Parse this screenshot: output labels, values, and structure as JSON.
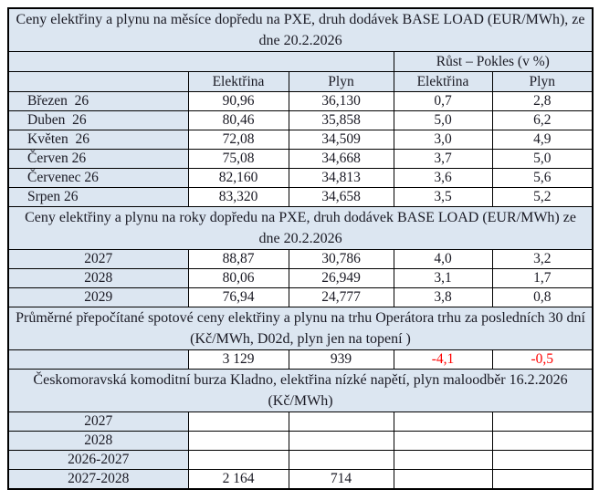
{
  "colors": {
    "header_bg": "#dce6f1",
    "cell_bg": "#ffffff",
    "text": "#1a1a24",
    "negative": "#ff0000",
    "border": "#000000"
  },
  "table": {
    "title_months": "Ceny elektřiny a plynu na měsíce dopředu na PXE, druh dodávek BASE LOAD (EUR/MWh), ze dne 20.2.2026",
    "growth_header": "Růst – Pokles (v %)",
    "col_headers": {
      "electricity": "Elektřina",
      "gas": "Plyn",
      "electricity_change": "Elektřina",
      "gas_change": "Plyn"
    },
    "months": [
      {
        "label": "Březen  26",
        "el": "90,96",
        "gas": "36,130",
        "el_ch": "0,7",
        "gas_ch": "2,8"
      },
      {
        "label": "Duben  26",
        "el": "80,46",
        "gas": "35,858",
        "el_ch": "5,0",
        "gas_ch": "6,2"
      },
      {
        "label": "Květen  26",
        "el": "72,08",
        "gas": "34,509",
        "el_ch": "3,0",
        "gas_ch": "4,9"
      },
      {
        "label": "Červen 26",
        "el": "75,08",
        "gas": "34,668",
        "el_ch": "3,7",
        "gas_ch": "5,0"
      },
      {
        "label": "Červenec 26",
        "el": "82,160",
        "gas": "34,813",
        "el_ch": "3,6",
        "gas_ch": "5,6"
      },
      {
        "label": "Srpen 26",
        "el": "83,320",
        "gas": "34,658",
        "el_ch": "3,5",
        "gas_ch": "5,2"
      }
    ],
    "title_years": "Ceny elektřiny a plynu na roky dopředu na PXE, druh dodávek BASE LOAD (EUR/MWh) ze dne 20.2.2026",
    "years": [
      {
        "label": "2027",
        "el": "88,87",
        "gas": "30,786",
        "el_ch": "4,0",
        "gas_ch": "3,2"
      },
      {
        "label": "2028",
        "el": "80,06",
        "gas": "26,949",
        "el_ch": "3,1",
        "gas_ch": "1,7"
      },
      {
        "label": "2029",
        "el": "76,94",
        "gas": "24,777",
        "el_ch": "3,8",
        "gas_ch": "0,8"
      }
    ],
    "title_spot": "Průměrné přepočítané spotové ceny elektřiny a plynu na trhu Operátora trhu za posledních 30 dní (Kč/MWh, D02d, plyn jen na topení )",
    "spot": {
      "label": "",
      "el": "3 129",
      "gas": "939",
      "el_ch": "-4,1",
      "gas_ch": "-0,5"
    },
    "title_ckb": "Českomoravská komoditní burza Kladno, elektřina nízké napětí, plyn maloodběr 16.2.2026 (Kč/MWh)",
    "ckb": [
      {
        "label": "2027",
        "el": "",
        "gas": "",
        "el_ch": "",
        "gas_ch": ""
      },
      {
        "label": "2028",
        "el": "",
        "gas": "",
        "el_ch": "",
        "gas_ch": ""
      },
      {
        "label": "2026-2027",
        "el": "",
        "gas": "",
        "el_ch": "",
        "gas_ch": ""
      },
      {
        "label": "2027-2028",
        "el": "2 164",
        "gas": "714",
        "el_ch": "",
        "gas_ch": ""
      }
    ]
  }
}
